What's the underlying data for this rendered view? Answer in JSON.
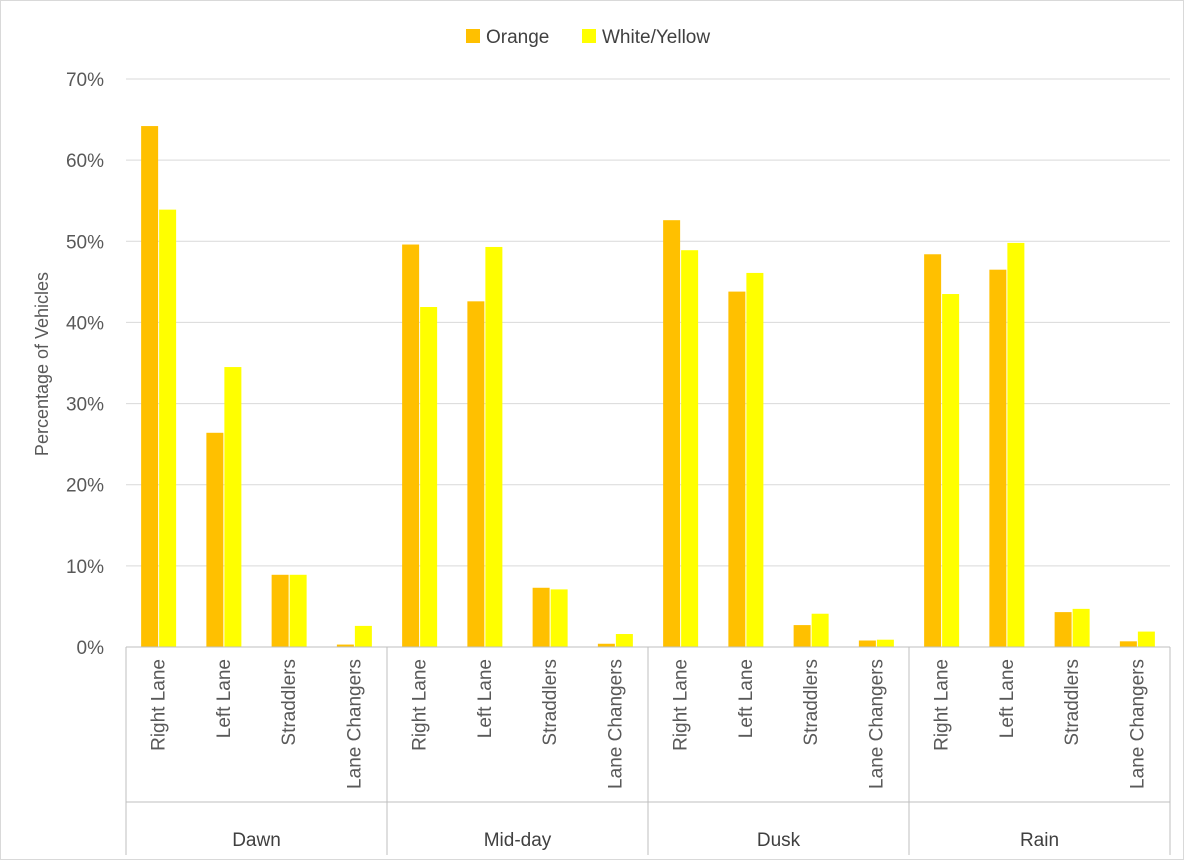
{
  "chart_data": {
    "type": "bar",
    "ylabel": "Percentage of Vehicles",
    "ylim": [
      0,
      70
    ],
    "y_ticks": [
      "0%",
      "10%",
      "20%",
      "30%",
      "40%",
      "50%",
      "60%",
      "70%"
    ],
    "grid": true,
    "legend_position": "top",
    "groups": [
      "Dawn",
      "Mid-day",
      "Dusk",
      "Rain"
    ],
    "categories": [
      "Right Lane",
      "Left Lane",
      "Straddlers",
      "Lane Changers"
    ],
    "series": [
      {
        "name": "Orange",
        "color": "#FFC000",
        "values": [
          [
            64.2,
            26.4,
            8.9,
            0.3
          ],
          [
            49.6,
            42.6,
            7.3,
            0.4
          ],
          [
            52.6,
            43.8,
            2.7,
            0.8
          ],
          [
            48.4,
            46.5,
            4.3,
            0.7
          ]
        ]
      },
      {
        "name": "White/Yellow",
        "color": "#FFFF00",
        "values": [
          [
            53.9,
            34.5,
            8.9,
            2.6
          ],
          [
            41.9,
            49.3,
            7.1,
            1.6
          ],
          [
            48.9,
            46.1,
            4.1,
            0.9
          ],
          [
            43.5,
            49.8,
            4.7,
            1.9
          ]
        ]
      }
    ]
  }
}
